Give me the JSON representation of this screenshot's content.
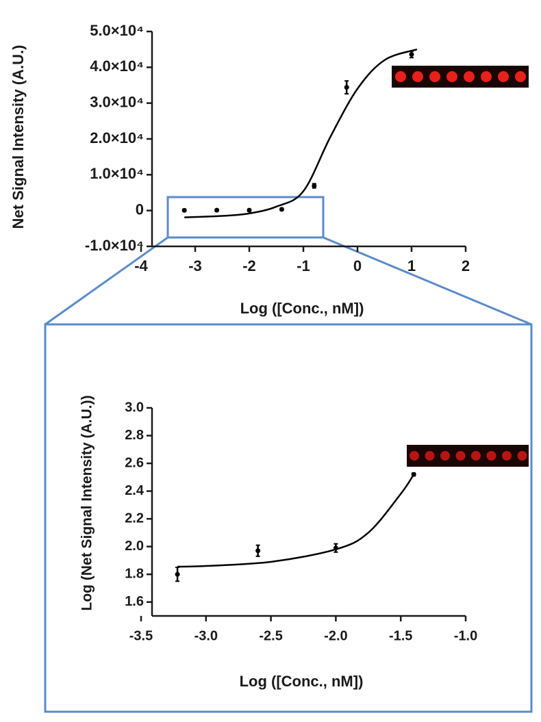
{
  "chart_data": [
    {
      "type": "scatter",
      "y_label": "Net Signal Intensity (A.U.)",
      "x_label": "Log ([Conc., nM])",
      "xlim": [
        -4,
        2
      ],
      "xticks": [
        -4,
        -3,
        -2,
        -1,
        0,
        1,
        2
      ],
      "ylim": [
        -10000,
        50000
      ],
      "yticks": [
        {
          "value": 50000,
          "label": "5.0×10⁴"
        },
        {
          "value": 40000,
          "label": "4.0×10⁴"
        },
        {
          "value": 30000,
          "label": "3.0×10⁴"
        },
        {
          "value": 20000,
          "label": "2.0×10⁴"
        },
        {
          "value": 10000,
          "label": "1.0×10⁴"
        },
        0,
        {
          "value": -10000,
          "label": "-1.0×10⁴"
        }
      ],
      "color": "#000000",
      "x": [
        -3.2,
        -2.6,
        -2.0,
        -1.4,
        -0.8,
        -0.2,
        1.0
      ],
      "values": [
        63,
        93,
        95,
        331,
        6900,
        34400,
        43600
      ],
      "errors": [
        300,
        300,
        300,
        300,
        600,
        1800,
        900
      ],
      "fit": {
        "x": [
          -3.2,
          -2.5,
          -2.0,
          -1.5,
          -1.0,
          -0.5,
          0,
          0.5,
          1.1
        ],
        "values": [
          -1900,
          -1500,
          -800,
          1100,
          5400,
          20600,
          34000,
          42000,
          45000
        ]
      }
    },
    {
      "type": "scatter",
      "y_label": "Log (Net Signal Intensity (A.U.))",
      "x_label": "Log ([Conc., nM])",
      "xlim": [
        -3.5,
        -1.0
      ],
      "xticks": [
        -3.5,
        {
          "value": -3.0,
          "label": "-3.0"
        },
        -2.5,
        {
          "value": -2.0,
          "label": "-2.0"
        },
        -1.5,
        {
          "value": -1.0,
          "label": "-1.0"
        }
      ],
      "ylim": [
        1.5,
        3.0
      ],
      "yticks": [
        {
          "value": 3.0,
          "label": "3.0"
        },
        2.8,
        2.6,
        2.4,
        2.2,
        {
          "value": 2.0,
          "label": "2.0"
        },
        1.8,
        1.6
      ],
      "color": "#000000",
      "x": [
        -3.22,
        -2.6,
        -2.0,
        -1.4
      ],
      "values": [
        1.8,
        1.97,
        1.99,
        2.52
      ],
      "errors": [
        0.05,
        0.04,
        0.03,
        0.01
      ],
      "fit": {
        "x": [
          -3.22,
          -3.0,
          -2.5,
          -2.0,
          -1.75,
          -1.5,
          -1.4
        ],
        "values": [
          1.855,
          1.86,
          1.89,
          1.98,
          2.1,
          2.38,
          2.52
        ]
      }
    }
  ]
}
